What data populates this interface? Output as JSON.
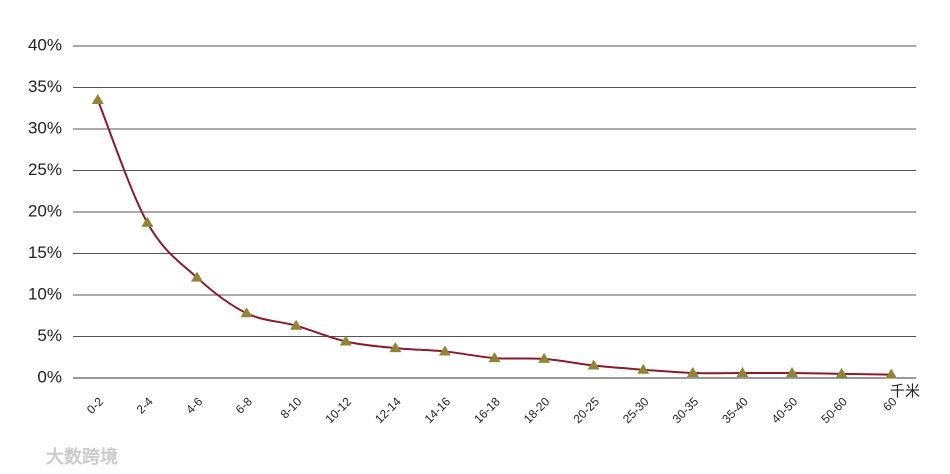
{
  "chart_data": {
    "type": "line",
    "categories": [
      "0-2",
      "2-4",
      "4-6",
      "6-8",
      "8-10",
      "10-12",
      "12-14",
      "14-16",
      "16-18",
      "18-20",
      "20-25",
      "25-30",
      "30-35",
      "35-40",
      "40-50",
      "50-60",
      "60"
    ],
    "series": [
      {
        "color": "#8b1a2b",
        "marker_color": "#8c8636",
        "values": [
          33.5,
          18.7,
          12.1,
          7.8,
          6.3,
          4.4,
          3.6,
          3.2,
          2.4,
          2.3,
          1.5,
          1.0,
          0.6,
          0.6,
          0.6,
          0.5,
          0.4
        ]
      }
    ],
    "ylim": [
      0,
      40
    ],
    "yticks": [
      {
        "value": 0,
        "label": "0%"
      },
      {
        "value": 5,
        "label": "5%"
      },
      {
        "value": 10,
        "label": "10%"
      },
      {
        "value": 15,
        "label": "15%"
      },
      {
        "value": 20,
        "label": "20%"
      },
      {
        "value": 25,
        "label": "25%"
      },
      {
        "value": 30,
        "label": "30%"
      },
      {
        "value": 35,
        "label": "35%"
      },
      {
        "value": 40,
        "label": "40%"
      }
    ],
    "grid": true,
    "x_unit": "千米",
    "watermark": "大数跨境"
  }
}
